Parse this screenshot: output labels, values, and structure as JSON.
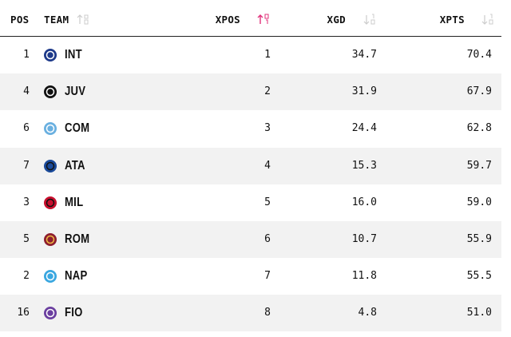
{
  "table": {
    "headers": [
      "POS",
      "TEAM",
      "XPOS",
      "XGD",
      "XPTS"
    ],
    "rows": [
      [
        "1",
        "INT",
        "1",
        "34.7",
        "70.4"
      ],
      [
        "4",
        "JUV",
        "2",
        "31.9",
        "67.9"
      ],
      [
        "6",
        "COM",
        "3",
        "24.4",
        "62.8"
      ],
      [
        "7",
        "ATA",
        "4",
        "15.3",
        "59.7"
      ],
      [
        "3",
        "MIL",
        "5",
        "16.0",
        "59.0"
      ],
      [
        "5",
        "ROM",
        "6",
        "10.7",
        "55.9"
      ],
      [
        "2",
        "NAP",
        "7",
        "11.8",
        "55.5"
      ],
      [
        "16",
        "FIO",
        "8",
        "4.8",
        "51.0"
      ]
    ]
  }
}
